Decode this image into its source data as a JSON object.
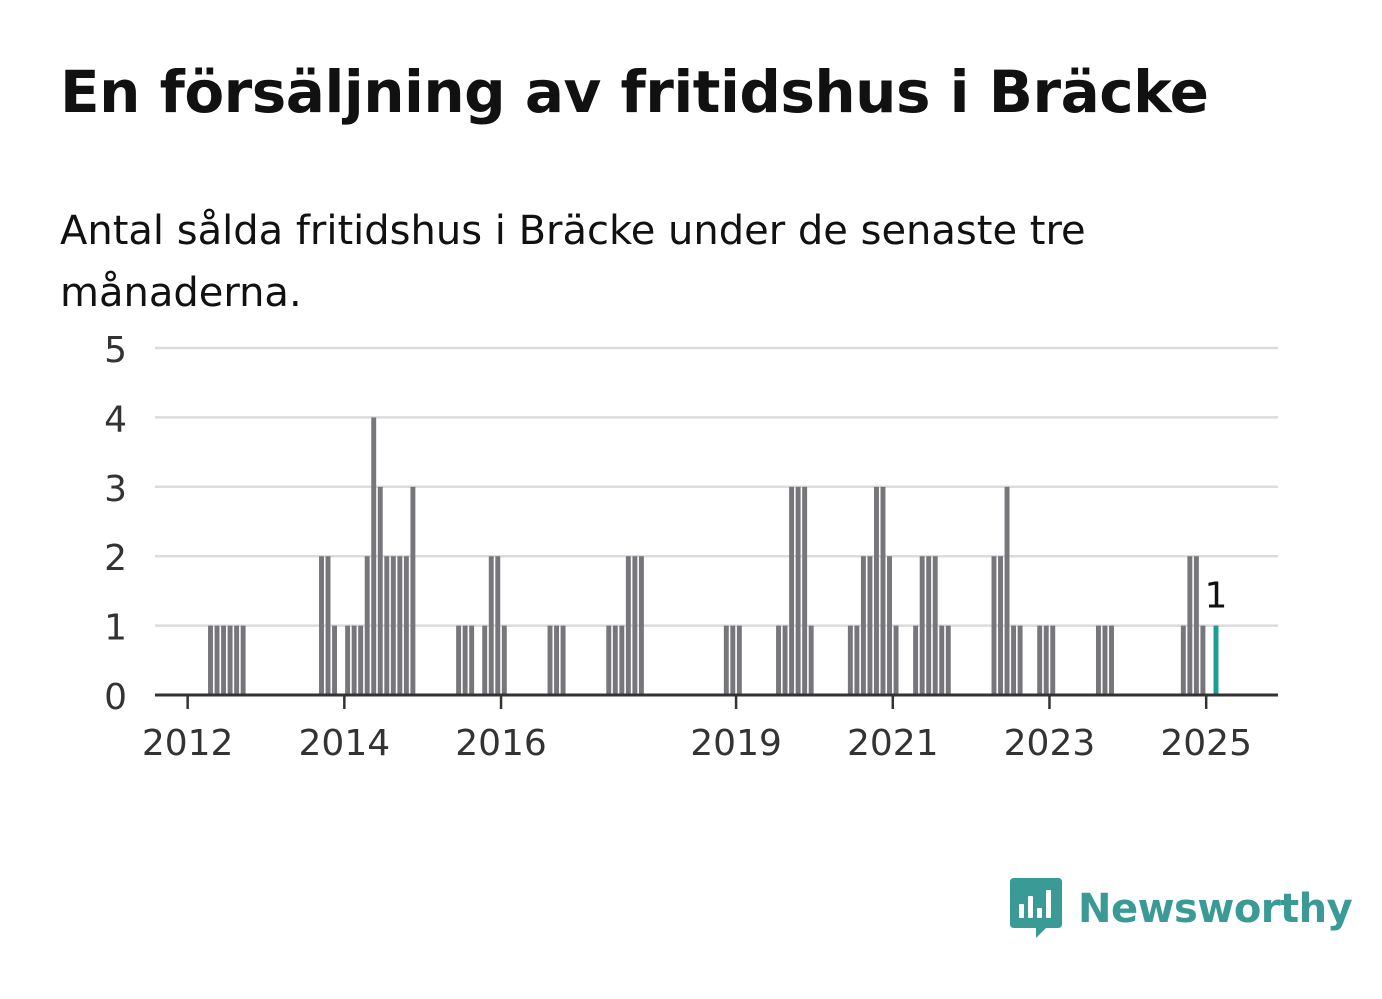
{
  "title": "En försäljning av fritidshus i Bräcke",
  "subtitle": "Antal sålda fritidshus i Bräcke under de senaste tre månaderna.",
  "brand": {
    "name": "Newsworthy",
    "color": "#3a9a95",
    "icon": "newsworthy-logo-icon"
  },
  "chart_data": {
    "type": "bar",
    "title": "",
    "xlabel": "",
    "ylabel": "",
    "ylim": [
      0,
      5
    ],
    "yticks": [
      0,
      1,
      2,
      3,
      4,
      5
    ],
    "xlim": [
      "2011-08",
      "2025-12"
    ],
    "xticks": [
      "2012",
      "2014",
      "2016",
      "2019",
      "2021",
      "2023",
      "2025"
    ],
    "grid": true,
    "bar_color": "#77767b",
    "highlight_color": "#1a9e96",
    "highlight_label": "1",
    "series": [
      {
        "x": [
          "2012-04",
          "2012-05",
          "2012-06",
          "2012-07",
          "2012-08",
          "2012-09",
          "2013-09",
          "2013-10",
          "2013-11",
          "2014-01",
          "2014-02",
          "2014-03",
          "2014-04",
          "2014-05",
          "2014-06",
          "2014-07",
          "2014-08",
          "2014-09",
          "2014-10",
          "2014-11",
          "2015-06",
          "2015-07",
          "2015-08",
          "2015-10",
          "2015-11",
          "2015-12",
          "2016-01",
          "2016-08",
          "2016-09",
          "2016-10",
          "2017-05",
          "2017-06",
          "2017-07",
          "2017-08",
          "2017-09",
          "2017-10",
          "2018-11",
          "2018-12",
          "2019-01",
          "2019-07",
          "2019-08",
          "2019-09",
          "2019-10",
          "2019-11",
          "2019-12",
          "2020-06",
          "2020-07",
          "2020-08",
          "2020-09",
          "2020-10",
          "2020-11",
          "2020-12",
          "2021-01",
          "2021-04",
          "2021-05",
          "2021-06",
          "2021-07",
          "2021-08",
          "2021-09",
          "2022-04",
          "2022-05",
          "2022-06",
          "2022-07",
          "2022-08",
          "2022-11",
          "2022-12",
          "2023-01",
          "2023-08",
          "2023-09",
          "2023-10",
          "2024-09",
          "2024-10",
          "2024-11",
          "2024-12",
          "2025-02"
        ],
        "values": [
          1,
          1,
          1,
          1,
          1,
          1,
          2,
          2,
          1,
          1,
          1,
          1,
          2,
          4,
          3,
          2,
          2,
          2,
          2,
          3,
          1,
          1,
          1,
          1,
          2,
          2,
          1,
          1,
          1,
          1,
          1,
          1,
          1,
          2,
          2,
          2,
          1,
          1,
          1,
          1,
          1,
          3,
          3,
          3,
          1,
          1,
          1,
          2,
          2,
          3,
          3,
          2,
          1,
          1,
          2,
          2,
          2,
          1,
          1,
          2,
          2,
          3,
          1,
          1,
          1,
          1,
          1,
          1,
          1,
          1,
          1,
          2,
          2,
          1,
          1
        ],
        "highlight_index": 74
      }
    ]
  }
}
